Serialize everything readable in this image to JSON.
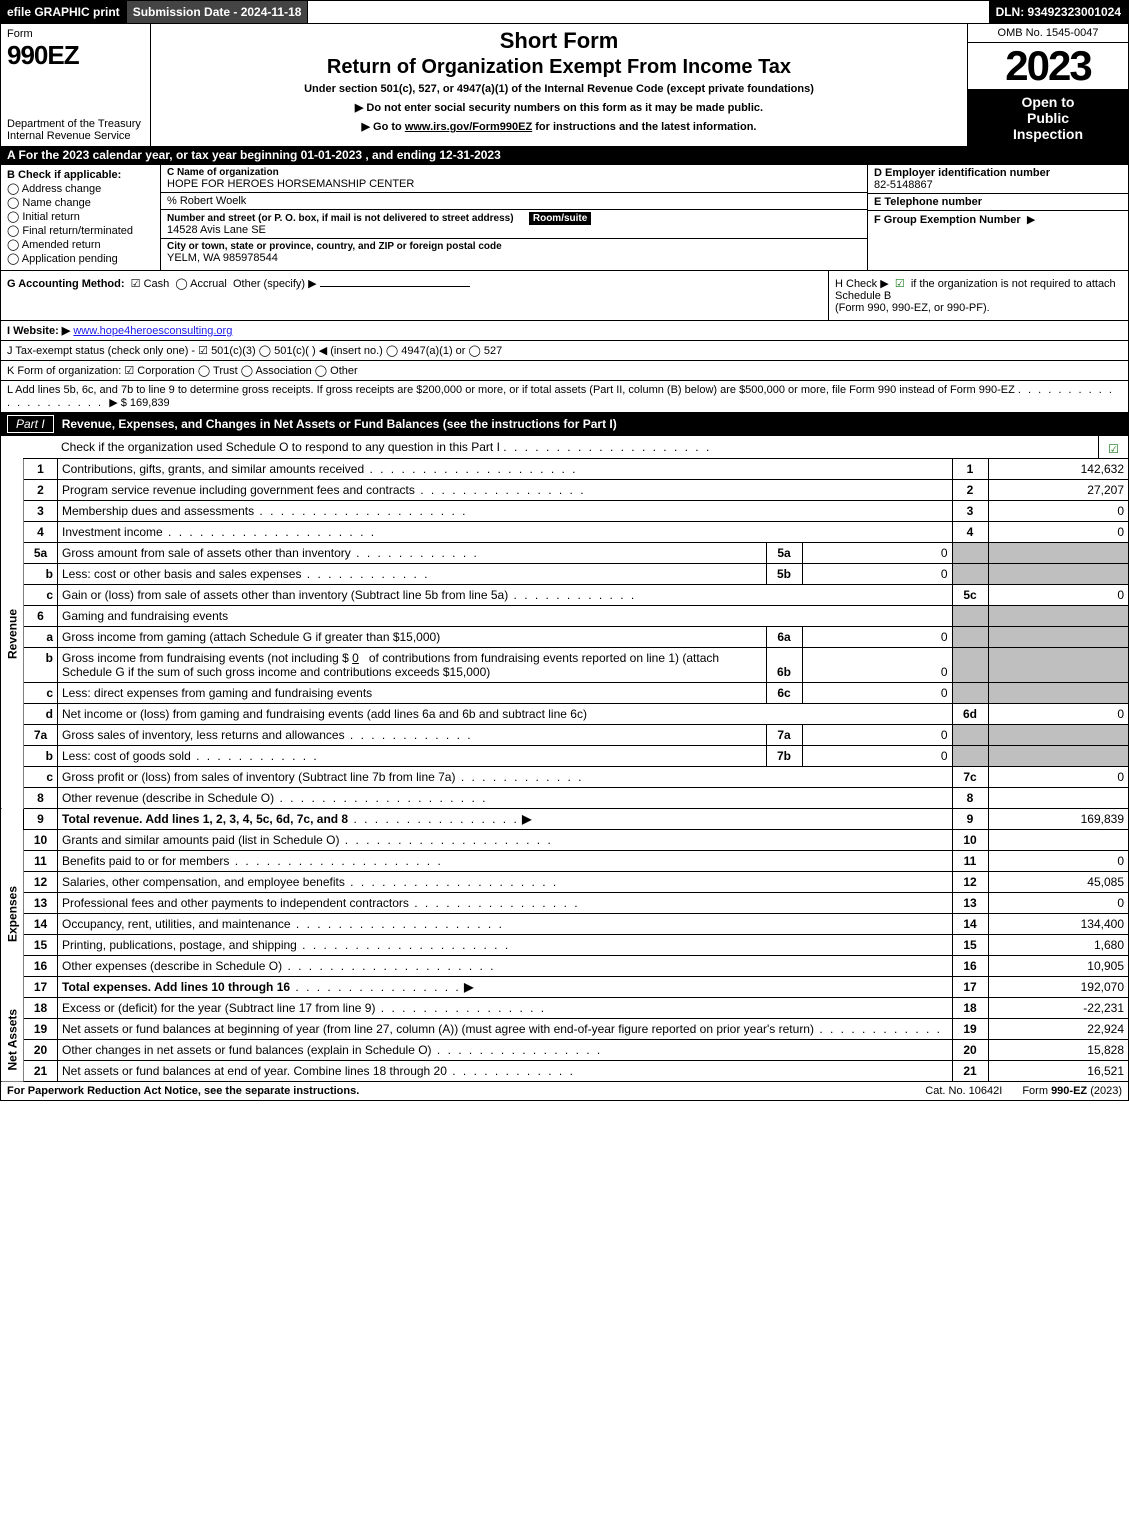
{
  "topbar": {
    "efile": "efile GRAPHIC print",
    "submission": "Submission Date - 2024-11-18",
    "dln": "DLN: 93492323001024"
  },
  "header": {
    "form_word": "Form",
    "form_number": "990EZ",
    "dept1": "Department of the Treasury",
    "dept2": "Internal Revenue Service",
    "short_form": "Short Form",
    "return_title": "Return of Organization Exempt From Income Tax",
    "under_section": "Under section 501(c), 527, or 4947(a)(1) of the Internal Revenue Code (except private foundations)",
    "instr1": "▶ Do not enter social security numbers on this form as it may be made public.",
    "instr2_pre": "▶ Go to ",
    "instr2_link": "www.irs.gov/Form990EZ",
    "instr2_post": " for instructions and the latest information.",
    "omb": "OMB No. 1545-0047",
    "year": "2023",
    "open1": "Open to",
    "open2": "Public",
    "open3": "Inspection"
  },
  "lineA": "A  For the 2023 calendar year, or tax year beginning 01-01-2023 , and ending 12-31-2023",
  "boxB": {
    "header": "B  Check if applicable:",
    "items": [
      "Address change",
      "Name change",
      "Initial return",
      "Final return/terminated",
      "Amended return",
      "Application pending"
    ]
  },
  "boxC": {
    "label_name": "C Name of organization",
    "org_name": "HOPE FOR HEROES HORSEMANSHIP CENTER",
    "care_of": "% Robert Woelk",
    "label_addr": "Number and street (or P. O. box, if mail is not delivered to street address)",
    "label_room": "Room/suite",
    "address": "14528 Avis Lane SE",
    "label_city": "City or town, state or province, country, and ZIP or foreign postal code",
    "city": "YELM, WA  985978544"
  },
  "boxD": {
    "label": "D Employer identification number",
    "value": "82-5148867"
  },
  "boxE": {
    "label": "E Telephone number",
    "value": ""
  },
  "boxF": {
    "label": "F Group Exemption Number",
    "arrow": "▶"
  },
  "boxG": {
    "label": "G Accounting Method:",
    "cash": "Cash",
    "accrual": "Accrual",
    "other": "Other (specify) ▶"
  },
  "boxH": {
    "text1": "H  Check ▶",
    "text2": "if the organization is not required to attach Schedule B",
    "text3": "(Form 990, 990-EZ, or 990-PF)."
  },
  "lineI": {
    "label": "I Website: ▶",
    "url": "www.hope4heroesconsulting.org"
  },
  "lineJ": "J Tax-exempt status (check only one) -  ☑ 501(c)(3)  ◯ 501(c)(  ) ◀ (insert no.)  ◯ 4947(a)(1) or  ◯ 527",
  "lineK": "K Form of organization:   ☑ Corporation   ◯ Trust   ◯ Association   ◯ Other",
  "lineL": {
    "text": "L Add lines 5b, 6c, and 7b to line 9 to determine gross receipts. If gross receipts are $200,000 or more, or if total assets (Part II, column (B) below) are $500,000 or more, file Form 990 instead of Form 990-EZ",
    "amount_label": "▶ $",
    "amount": "169,839"
  },
  "partI": {
    "badge": "Part I",
    "title": "Revenue, Expenses, and Changes in Net Assets or Fund Balances (see the instructions for Part I)",
    "check_text": "Check if the organization used Schedule O to respond to any question in this Part I"
  },
  "sidebar": {
    "revenue": "Revenue",
    "expenses": "Expenses",
    "netassets": "Net Assets"
  },
  "rows": {
    "r1": {
      "n": "1",
      "desc": "Contributions, gifts, grants, and similar amounts received",
      "code": "1",
      "amt": "142,632"
    },
    "r2": {
      "n": "2",
      "desc": "Program service revenue including government fees and contracts",
      "code": "2",
      "amt": "27,207"
    },
    "r3": {
      "n": "3",
      "desc": "Membership dues and assessments",
      "code": "3",
      "amt": "0"
    },
    "r4": {
      "n": "4",
      "desc": "Investment income",
      "code": "4",
      "amt": "0"
    },
    "r5a": {
      "n": "5a",
      "desc": "Gross amount from sale of assets other than inventory",
      "sub": "5a",
      "subval": "0"
    },
    "r5b": {
      "n": "b",
      "desc": "Less: cost or other basis and sales expenses",
      "sub": "5b",
      "subval": "0"
    },
    "r5c": {
      "n": "c",
      "desc": "Gain or (loss) from sale of assets other than inventory (Subtract line 5b from line 5a)",
      "code": "5c",
      "amt": "0"
    },
    "r6": {
      "n": "6",
      "desc": "Gaming and fundraising events"
    },
    "r6a": {
      "n": "a",
      "desc": "Gross income from gaming (attach Schedule G if greater than $15,000)",
      "sub": "6a",
      "subval": "0"
    },
    "r6b": {
      "n": "b",
      "desc1": "Gross income from fundraising events (not including $",
      "blank": "0",
      "desc2": "of contributions from fundraising events reported on line 1) (attach Schedule G if the sum of such gross income and contributions exceeds $15,000)",
      "sub": "6b",
      "subval": "0"
    },
    "r6c": {
      "n": "c",
      "desc": "Less: direct expenses from gaming and fundraising events",
      "sub": "6c",
      "subval": "0"
    },
    "r6d": {
      "n": "d",
      "desc": "Net income or (loss) from gaming and fundraising events (add lines 6a and 6b and subtract line 6c)",
      "code": "6d",
      "amt": "0"
    },
    "r7a": {
      "n": "7a",
      "desc": "Gross sales of inventory, less returns and allowances",
      "sub": "7a",
      "subval": "0"
    },
    "r7b": {
      "n": "b",
      "desc": "Less: cost of goods sold",
      "sub": "7b",
      "subval": "0"
    },
    "r7c": {
      "n": "c",
      "desc": "Gross profit or (loss) from sales of inventory (Subtract line 7b from line 7a)",
      "code": "7c",
      "amt": "0"
    },
    "r8": {
      "n": "8",
      "desc": "Other revenue (describe in Schedule O)",
      "code": "8",
      "amt": ""
    },
    "r9": {
      "n": "9",
      "desc": "Total revenue. Add lines 1, 2, 3, 4, 5c, 6d, 7c, and 8",
      "code": "9",
      "amt": "169,839"
    },
    "r10": {
      "n": "10",
      "desc": "Grants and similar amounts paid (list in Schedule O)",
      "code": "10",
      "amt": ""
    },
    "r11": {
      "n": "11",
      "desc": "Benefits paid to or for members",
      "code": "11",
      "amt": "0"
    },
    "r12": {
      "n": "12",
      "desc": "Salaries, other compensation, and employee benefits",
      "code": "12",
      "amt": "45,085"
    },
    "r13": {
      "n": "13",
      "desc": "Professional fees and other payments to independent contractors",
      "code": "13",
      "amt": "0"
    },
    "r14": {
      "n": "14",
      "desc": "Occupancy, rent, utilities, and maintenance",
      "code": "14",
      "amt": "134,400"
    },
    "r15": {
      "n": "15",
      "desc": "Printing, publications, postage, and shipping",
      "code": "15",
      "amt": "1,680"
    },
    "r16": {
      "n": "16",
      "desc": "Other expenses (describe in Schedule O)",
      "code": "16",
      "amt": "10,905"
    },
    "r17": {
      "n": "17",
      "desc": "Total expenses. Add lines 10 through 16",
      "code": "17",
      "amt": "192,070"
    },
    "r18": {
      "n": "18",
      "desc": "Excess or (deficit) for the year (Subtract line 17 from line 9)",
      "code": "18",
      "amt": "-22,231"
    },
    "r19": {
      "n": "19",
      "desc": "Net assets or fund balances at beginning of year (from line 27, column (A)) (must agree with end-of-year figure reported on prior year's return)",
      "code": "19",
      "amt": "22,924"
    },
    "r20": {
      "n": "20",
      "desc": "Other changes in net assets or fund balances (explain in Schedule O)",
      "code": "20",
      "amt": "15,828"
    },
    "r21": {
      "n": "21",
      "desc": "Net assets or fund balances at end of year. Combine lines 18 through 20",
      "code": "21",
      "amt": "16,521"
    }
  },
  "footer": {
    "left": "For Paperwork Reduction Act Notice, see the separate instructions.",
    "center": "Cat. No. 10642I",
    "right_pre": "Form ",
    "right_form": "990-EZ",
    "right_post": " (2023)"
  }
}
